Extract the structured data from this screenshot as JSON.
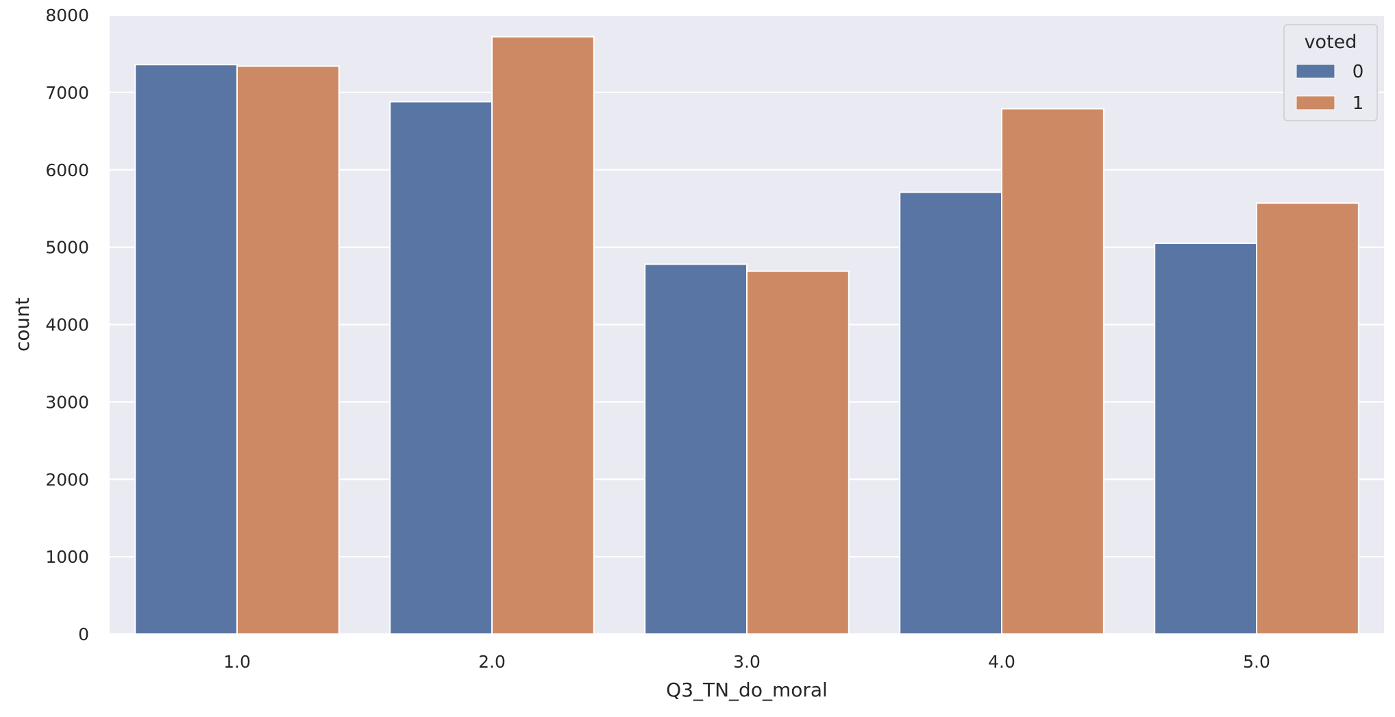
{
  "chart_data": {
    "type": "bar",
    "title": "",
    "xlabel": "Q3_TN_do_moral",
    "ylabel": "count",
    "categories": [
      "1.0",
      "2.0",
      "3.0",
      "4.0",
      "5.0"
    ],
    "ylim": [
      0,
      8000
    ],
    "yticks": [
      0,
      1000,
      2000,
      3000,
      4000,
      5000,
      6000,
      7000,
      8000
    ],
    "grid": true,
    "legend": {
      "title": "voted",
      "placement": "top-right"
    },
    "series": [
      {
        "name": "0",
        "color": "#5975a4",
        "values": [
          7360,
          6880,
          4780,
          5710,
          5050
        ]
      },
      {
        "name": "1",
        "color": "#cc8963",
        "values": [
          7340,
          7720,
          4690,
          6790,
          5570
        ]
      }
    ],
    "background_color": "#eaeaf2",
    "grid_color": "#ffffff"
  }
}
